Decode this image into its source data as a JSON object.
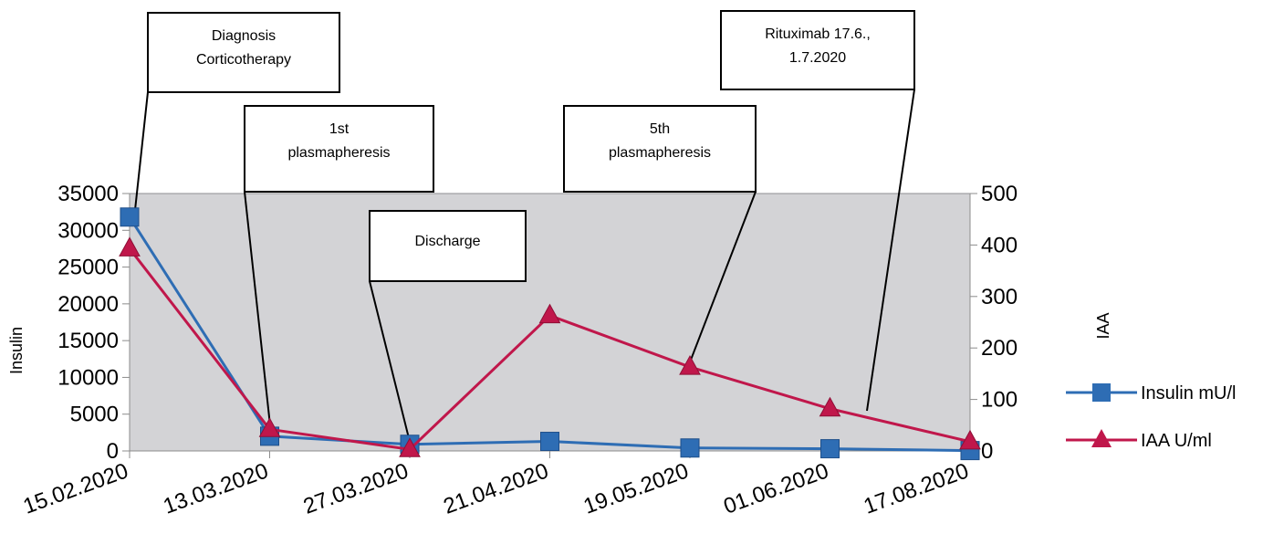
{
  "chart_data": {
    "type": "line",
    "categories": [
      "15.02.2020",
      "13.03.2020",
      "27.03.2020",
      "21.04.2020",
      "19.05.2020",
      "01.06.2020",
      "17.08.2020"
    ],
    "ylabel": "Insulin",
    "y2label": "IAA",
    "ylim": [
      0,
      35000
    ],
    "y2lim": [
      0,
      500
    ],
    "yticks": [
      0,
      5000,
      10000,
      15000,
      20000,
      25000,
      30000,
      35000
    ],
    "y2ticks": [
      0,
      100,
      200,
      300,
      400,
      500
    ],
    "series": [
      {
        "name": "Insulin mU/l",
        "axis": "left",
        "color": "#2e6db4",
        "marker": "square",
        "values": [
          31800,
          2000,
          900,
          1300,
          400,
          300,
          50
        ]
      },
      {
        "name": "IAA U/ml",
        "axis": "right",
        "color": "#c0174b",
        "marker": "triangle",
        "values": [
          393,
          42,
          3,
          263,
          163,
          82,
          18
        ]
      }
    ],
    "legend_position": "right",
    "plot_background": "#d3d3d6",
    "annotations": [
      {
        "lines": [
          "Diagnosis",
          "Corticotherapy"
        ],
        "target_index": 0
      },
      {
        "lines": [
          "1st",
          "plasmapheresis"
        ],
        "target_index": 1
      },
      {
        "lines": [
          "Discharge"
        ],
        "target_index": 2
      },
      {
        "lines": [
          "5th",
          "plasmapheresis"
        ],
        "target_index": 4
      },
      {
        "lines": [
          "Rituximab 17.6.,",
          "1.7.2020"
        ],
        "target_index": 5
      }
    ]
  }
}
